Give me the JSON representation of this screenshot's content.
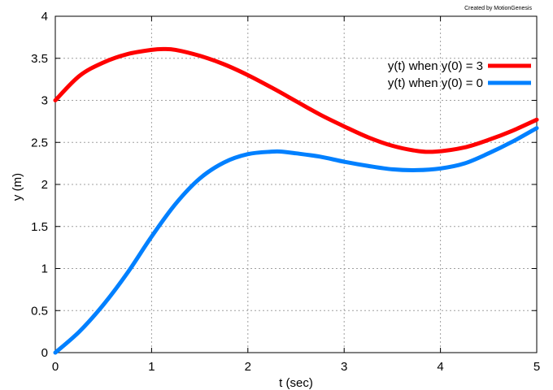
{
  "credit": "Created by MotionGenesis",
  "chart_data": {
    "type": "line",
    "xlabel": "t (sec)",
    "ylabel": "y (m)",
    "xlim": [
      0,
      5
    ],
    "ylim": [
      0,
      4
    ],
    "xticks": [
      0,
      1,
      2,
      3,
      4,
      5
    ],
    "xtick_labels": [
      "0",
      "1",
      "2",
      "3",
      "4",
      "5"
    ],
    "yticks": [
      0,
      0.5,
      1,
      1.5,
      2,
      2.5,
      3,
      3.5,
      4
    ],
    "ytick_labels": [
      "0",
      "0.5",
      "1",
      "1.5",
      "2",
      "2.5",
      "3",
      "3.5",
      "4"
    ],
    "grid": true,
    "legend_position": "top-right",
    "series": [
      {
        "name": "y(t) when y(0) = 3",
        "color": "#ff0000",
        "x": [
          0,
          0.25,
          0.5,
          0.75,
          1.0,
          1.12,
          1.25,
          1.5,
          1.75,
          2.0,
          2.25,
          2.5,
          2.75,
          3.0,
          3.25,
          3.5,
          3.75,
          3.95,
          4.25,
          4.5,
          4.75,
          5.0
        ],
        "y": [
          3.0,
          3.29,
          3.45,
          3.55,
          3.6,
          3.61,
          3.6,
          3.53,
          3.43,
          3.3,
          3.15,
          2.99,
          2.83,
          2.69,
          2.56,
          2.46,
          2.4,
          2.39,
          2.44,
          2.53,
          2.64,
          2.77
        ]
      },
      {
        "name": "y(t) when y(0) = 0",
        "color": "#0080ff",
        "x": [
          0,
          0.25,
          0.5,
          0.75,
          1.0,
          1.25,
          1.5,
          1.75,
          2.0,
          2.25,
          2.35,
          2.5,
          2.75,
          3.0,
          3.25,
          3.5,
          3.75,
          4.0,
          4.25,
          4.5,
          4.75,
          5.0
        ],
        "y": [
          0.0,
          0.25,
          0.57,
          0.95,
          1.38,
          1.77,
          2.07,
          2.26,
          2.36,
          2.39,
          2.39,
          2.37,
          2.33,
          2.27,
          2.22,
          2.18,
          2.17,
          2.19,
          2.25,
          2.37,
          2.51,
          2.67
        ]
      }
    ]
  }
}
